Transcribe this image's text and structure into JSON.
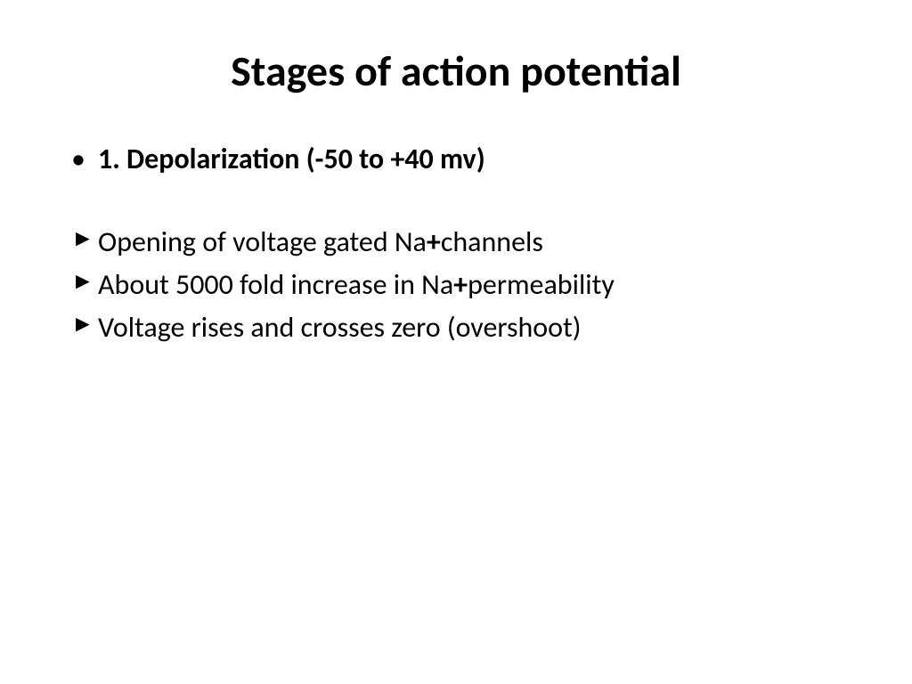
{
  "slide": {
    "title": "Stages of action potential",
    "mainBullet": "1. Depolarization (-50 to +40 mv)",
    "arrowItems": [
      {
        "prefix": "Opening of voltage gated Na",
        "bold": "+",
        "suffix": "channels"
      },
      {
        "prefix": "About 5000 fold increase in Na",
        "bold": "+",
        "suffix": "permeability"
      },
      {
        "prefix": "Voltage rises and crosses zero (overshoot)",
        "bold": "",
        "suffix": ""
      }
    ]
  },
  "styling": {
    "backgroundColor": "#ffffff",
    "textColor": "#000000",
    "titleFontSize": 48,
    "bodyFontSize": 32,
    "fontFamily": "Calibri"
  }
}
